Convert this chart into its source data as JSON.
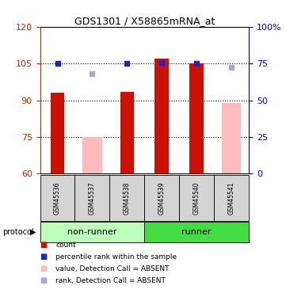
{
  "title": "GDS1301 / X58865mRNA_at",
  "samples": [
    "GSM45536",
    "GSM45537",
    "GSM45538",
    "GSM45539",
    "GSM45540",
    "GSM45541"
  ],
  "ylim_left": [
    60,
    120
  ],
  "ylim_right": [
    0,
    100
  ],
  "yticks_left": [
    60,
    75,
    90,
    105,
    120
  ],
  "yticks_right": [
    0,
    25,
    50,
    75,
    100
  ],
  "ytick_labels_right": [
    "0",
    "25",
    "50",
    "75",
    "100%"
  ],
  "red_bars": {
    "GSM45536": 93.0,
    "GSM45538": 93.5,
    "GSM45539": 107.0,
    "GSM45540": 105.0
  },
  "pink_bars": {
    "GSM45537": 75.0,
    "GSM45541": 89.0
  },
  "blue_squares": {
    "GSM45536": 105.0,
    "GSM45538": 105.0,
    "GSM45539": 105.5,
    "GSM45540": 105.2
  },
  "light_blue_squares": {
    "GSM45537": 101.0,
    "GSM45541": 103.5
  },
  "bar_width": 0.4,
  "red_color": "#cc1100",
  "pink_color": "#ffbbbb",
  "blue_color": "#2222cc",
  "light_blue_color": "#aaaacc",
  "left_tick_color": "#cc2200",
  "right_tick_color": "#0000cc",
  "group_light_green": "#bbffbb",
  "group_dark_green": "#44dd44",
  "grey_box": "#d4d4d4",
  "legend_items": [
    {
      "label": "count",
      "color": "#cc1100"
    },
    {
      "label": "percentile rank within the sample",
      "color": "#2222cc"
    },
    {
      "label": "value, Detection Call = ABSENT",
      "color": "#ffbbbb"
    },
    {
      "label": "rank, Detection Call = ABSENT",
      "color": "#aaaacc"
    }
  ]
}
